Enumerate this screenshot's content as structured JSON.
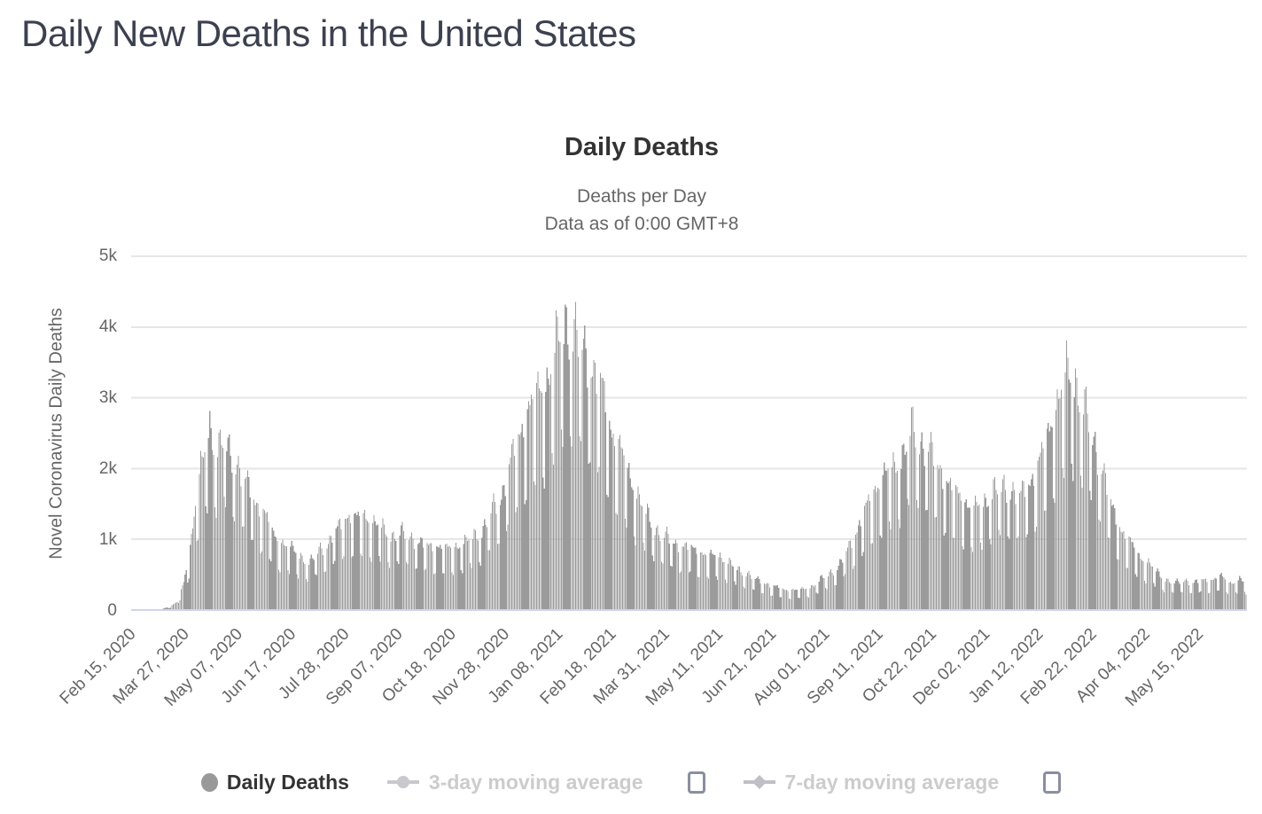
{
  "page": {
    "title": "Daily New Deaths in the United States"
  },
  "chart": {
    "title": "Daily Deaths",
    "subtitle_line1": "Deaths per Day",
    "subtitle_line2": "Data as of 0:00 GMT+8",
    "y_axis_title": "Novel Coronavirus Daily Deaths",
    "legend": [
      {
        "label": "Daily Deaths",
        "marker": "filled-circle",
        "active": true,
        "has_checkbox": false
      },
      {
        "label": "3-day moving average",
        "marker": "line-with-circle",
        "active": false,
        "has_checkbox": true,
        "checked": false
      },
      {
        "label": "7-day moving average",
        "marker": "line-with-diamond",
        "active": false,
        "has_checkbox": true,
        "checked": false
      }
    ],
    "colors": {
      "page_title": "#3c4150",
      "chart_title": "#333333",
      "subtitle": "#666666",
      "axis_text": "#666666",
      "gridline": "#e6e6e6",
      "x_axis_line": "#ccd6eb",
      "bar": "#9b9b9b",
      "legend_active_text": "#333333",
      "legend_disabled_text": "#cccccc",
      "checkbox_border": "#8a8ea0"
    }
  },
  "chart_data": {
    "type": "bar",
    "title": "Daily Deaths",
    "subtitle": [
      "Deaths per Day",
      "Data as of 0:00 GMT+8"
    ],
    "ylabel": "Novel Coronavirus Daily Deaths",
    "ylim": [
      0,
      5000
    ],
    "y_tick_labels": [
      "0",
      "1k",
      "2k",
      "3k",
      "4k",
      "5k"
    ],
    "x_tick_labels": [
      "Feb 15, 2020",
      "Mar 27, 2020",
      "May 07, 2020",
      "Jun 17, 2020",
      "Jul 28, 2020",
      "Sep 07, 2020",
      "Oct 18, 2020",
      "Nov 28, 2020",
      "Jan 08, 2021",
      "Feb 18, 2021",
      "Mar 31, 2021",
      "May 11, 2021",
      "Jun 21, 2021",
      "Aug 01, 2021",
      "Sep 11, 2021",
      "Oct 22, 2021",
      "Dec 02, 2021",
      "Jan 12, 2022",
      "Feb 22, 2022",
      "Apr 04, 2022",
      "May 15, 2022"
    ],
    "x_start_date": "Feb 15, 2020",
    "x_tick_interval_days": 41,
    "num_days": 857,
    "grid": "horizontal",
    "legend_position": "bottom",
    "series": [
      {
        "name": "Daily Deaths",
        "type": "column",
        "color": "#9b9b9b",
        "visible": true,
        "envelope_points_day_value": [
          [
            0,
            0
          ],
          [
            13,
            3
          ],
          [
            21,
            10
          ],
          [
            28,
            40
          ],
          [
            35,
            120
          ],
          [
            40,
            400
          ],
          [
            43,
            700
          ],
          [
            46,
            1100
          ],
          [
            49,
            1600
          ],
          [
            53,
            2100
          ],
          [
            56,
            2300
          ],
          [
            60,
            2700
          ],
          [
            63,
            2500
          ],
          [
            67,
            2450
          ],
          [
            71,
            2550
          ],
          [
            74,
            2350
          ],
          [
            78,
            2250
          ],
          [
            81,
            2200
          ],
          [
            88,
            1900
          ],
          [
            95,
            1600
          ],
          [
            102,
            1450
          ],
          [
            109,
            1100
          ],
          [
            116,
            1000
          ],
          [
            123,
            900
          ],
          [
            130,
            800
          ],
          [
            137,
            700
          ],
          [
            144,
            900
          ],
          [
            151,
            1000
          ],
          [
            158,
            1200
          ],
          [
            165,
            1400
          ],
          [
            172,
            1350
          ],
          [
            179,
            1400
          ],
          [
            186,
            1300
          ],
          [
            193,
            1200
          ],
          [
            200,
            1100
          ],
          [
            207,
            1150
          ],
          [
            214,
            1100
          ],
          [
            221,
            1000
          ],
          [
            228,
            950
          ],
          [
            235,
            950
          ],
          [
            242,
            900
          ],
          [
            249,
            950
          ],
          [
            256,
            1000
          ],
          [
            263,
            1100
          ],
          [
            270,
            1200
          ],
          [
            277,
            1500
          ],
          [
            284,
            1700
          ],
          [
            291,
            2200
          ],
          [
            298,
            2600
          ],
          [
            305,
            3000
          ],
          [
            312,
            3200
          ],
          [
            319,
            3400
          ],
          [
            326,
            3900
          ],
          [
            333,
            4300
          ],
          [
            340,
            4100
          ],
          [
            347,
            3900
          ],
          [
            354,
            3600
          ],
          [
            361,
            3300
          ],
          [
            368,
            2700
          ],
          [
            375,
            2400
          ],
          [
            382,
            2000
          ],
          [
            389,
            1700
          ],
          [
            396,
            1400
          ],
          [
            403,
            1200
          ],
          [
            410,
            1100
          ],
          [
            417,
            1000
          ],
          [
            424,
            950
          ],
          [
            431,
            900
          ],
          [
            438,
            850
          ],
          [
            445,
            800
          ],
          [
            452,
            800
          ],
          [
            459,
            700
          ],
          [
            466,
            600
          ],
          [
            473,
            550
          ],
          [
            480,
            450
          ],
          [
            487,
            400
          ],
          [
            494,
            350
          ],
          [
            501,
            300
          ],
          [
            508,
            300
          ],
          [
            515,
            300
          ],
          [
            522,
            350
          ],
          [
            529,
            450
          ],
          [
            536,
            550
          ],
          [
            543,
            650
          ],
          [
            550,
            900
          ],
          [
            557,
            1200
          ],
          [
            564,
            1500
          ],
          [
            571,
            1800
          ],
          [
            578,
            2000
          ],
          [
            585,
            2100
          ],
          [
            592,
            2300
          ],
          [
            599,
            2700
          ],
          [
            606,
            2500
          ],
          [
            613,
            2400
          ],
          [
            620,
            2100
          ],
          [
            627,
            1900
          ],
          [
            634,
            1700
          ],
          [
            641,
            1600
          ],
          [
            648,
            1500
          ],
          [
            655,
            1600
          ],
          [
            662,
            1800
          ],
          [
            669,
            1800
          ],
          [
            676,
            1800
          ],
          [
            683,
            1700
          ],
          [
            690,
            1900
          ],
          [
            697,
            2200
          ],
          [
            704,
            2600
          ],
          [
            711,
            3100
          ],
          [
            718,
            3500
          ],
          [
            725,
            3400
          ],
          [
            732,
            3000
          ],
          [
            739,
            2500
          ],
          [
            746,
            2100
          ],
          [
            753,
            1500
          ],
          [
            760,
            1200
          ],
          [
            767,
            1000
          ],
          [
            774,
            800
          ],
          [
            781,
            700
          ],
          [
            788,
            550
          ],
          [
            795,
            450
          ],
          [
            802,
            400
          ],
          [
            809,
            450
          ],
          [
            816,
            400
          ],
          [
            823,
            450
          ],
          [
            830,
            450
          ],
          [
            837,
            500
          ],
          [
            844,
            400
          ],
          [
            851,
            450
          ],
          [
            856,
            400
          ]
        ],
        "weekly_reporting_pattern": [
          0.9,
          0.58,
          0.56,
          0.94,
          1.0,
          1.0,
          0.96
        ]
      },
      {
        "name": "3-day moving average",
        "type": "line",
        "color": "#cccccc",
        "visible": false
      },
      {
        "name": "7-day moving average",
        "type": "line",
        "color": "#c3c3c8",
        "visible": false
      }
    ]
  }
}
